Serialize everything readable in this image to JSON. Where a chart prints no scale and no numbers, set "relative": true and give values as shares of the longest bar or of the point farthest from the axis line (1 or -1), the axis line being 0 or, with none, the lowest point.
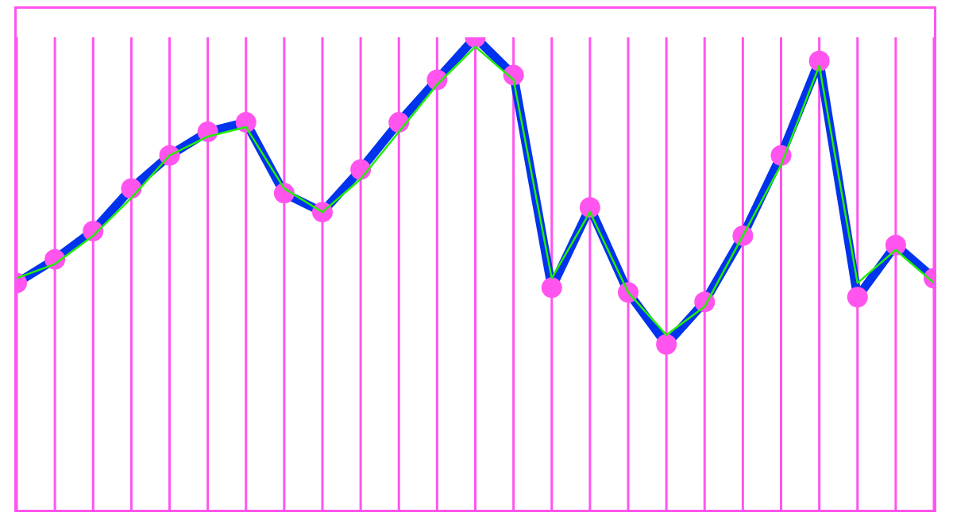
{
  "chart_data": {
    "type": "line",
    "relative": true,
    "grid": "x",
    "categories": [
      null,
      null,
      null,
      null,
      null,
      null,
      null,
      null,
      null,
      null,
      null,
      null,
      null,
      null,
      null,
      null,
      null,
      null,
      null,
      null,
      null,
      null,
      null,
      null,
      null
    ],
    "series": [
      {
        "color": "#0033ee",
        "marker": "circle",
        "values": [
          0.48,
          0.53,
          0.59,
          0.68,
          0.75,
          0.8,
          0.82,
          0.67,
          0.63,
          0.72,
          0.82,
          0.91,
          1,
          0.92,
          0.47,
          0.64,
          0.46,
          0.35,
          0.44,
          0.58,
          0.75,
          0.95,
          0.45,
          0.56,
          0.49
        ]
      },
      {
        "color": "#22ee00",
        "marker": "none",
        "values": [
          0.49,
          0.52,
          0.58,
          0.66,
          0.75,
          0.79,
          0.81,
          0.68,
          0.63,
          0.7,
          0.8,
          0.9,
          0.98,
          0.91,
          0.49,
          0.63,
          0.46,
          0.37,
          0.43,
          0.58,
          0.73,
          0.94,
          0.48,
          0.55,
          0.48
        ]
      }
    ]
  }
}
